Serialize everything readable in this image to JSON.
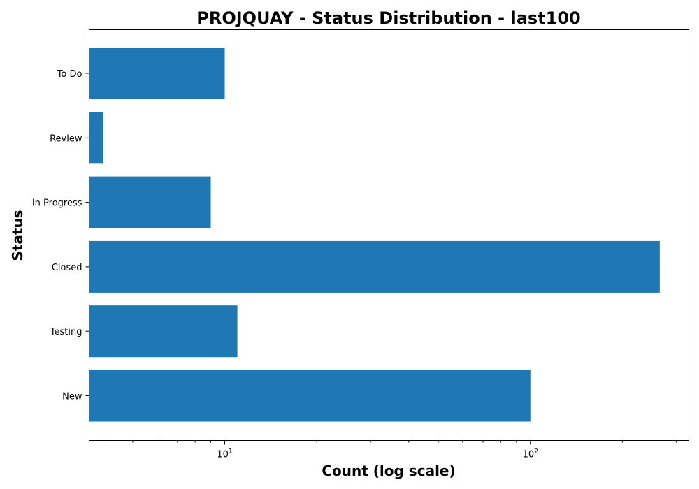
{
  "chart_data": {
    "type": "bar",
    "orientation": "horizontal",
    "title": "PROJQUAY - Status Distribution - last100",
    "xlabel": "Count (log scale)",
    "ylabel": "Status",
    "xscale": "log",
    "xlim": [
      3.6,
      330
    ],
    "categories": [
      "New",
      "Testing",
      "Closed",
      "In Progress",
      "Review",
      "To Do"
    ],
    "values": [
      100,
      11,
      265,
      9,
      4,
      10
    ],
    "x_ticks": [
      {
        "value": 10,
        "base": "10",
        "exp": "1"
      },
      {
        "value": 100,
        "base": "10",
        "exp": "2"
      }
    ],
    "bar_color": "#1f77b4",
    "grid": false
  }
}
